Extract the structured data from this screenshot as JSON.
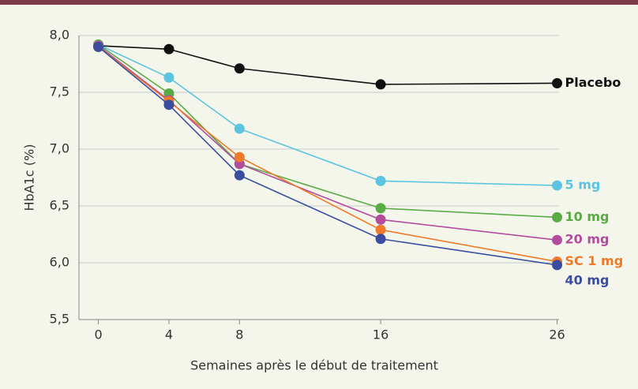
{
  "chart_data": {
    "type": "line",
    "xlabel": "Semaines après le début de traitement",
    "ylabel": "HbA1c (%)",
    "x": [
      0,
      4,
      8,
      16,
      26
    ],
    "xlim": [
      -1.1,
      26.2
    ],
    "xticks": [
      0,
      4,
      8,
      16,
      26
    ],
    "ylim": [
      5.5,
      8.0
    ],
    "yticks": [
      {
        "value": 5.5,
        "label": "5,5"
      },
      {
        "value": 6.0,
        "label": "6,0"
      },
      {
        "value": 6.5,
        "label": "6,5"
      },
      {
        "value": 7.0,
        "label": "7,0"
      },
      {
        "value": 7.5,
        "label": "7,5"
      },
      {
        "value": 8.0,
        "label": "8,0"
      }
    ],
    "grid": true,
    "series": [
      {
        "name": "Placebo",
        "color": "#111111",
        "values": [
          7.91,
          7.88,
          7.71,
          7.57,
          7.58
        ]
      },
      {
        "name": "5 mg",
        "color": "#5bc4e0",
        "values": [
          7.92,
          7.63,
          7.18,
          6.72,
          6.68
        ]
      },
      {
        "name": "10 mg",
        "color": "#5aab46",
        "values": [
          7.92,
          7.49,
          6.87,
          6.48,
          6.4
        ]
      },
      {
        "name": "20 mg",
        "color": "#b24d9e",
        "values": [
          7.91,
          7.43,
          6.87,
          6.38,
          6.2
        ]
      },
      {
        "name": "SC 1 mg",
        "color": "#f07a2a",
        "values": [
          7.9,
          7.42,
          6.93,
          6.29,
          6.01
        ]
      },
      {
        "name": "40 mg",
        "color": "#3a4d9e",
        "values": [
          7.9,
          7.39,
          6.77,
          6.21,
          5.98
        ]
      }
    ]
  }
}
